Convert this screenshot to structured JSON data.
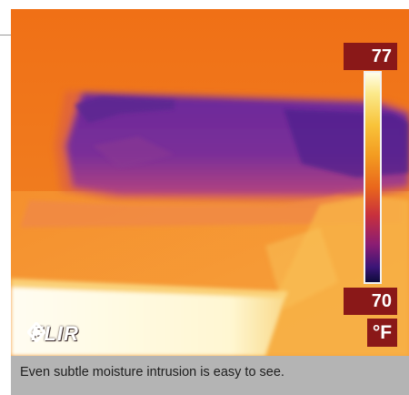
{
  "image": {
    "description": "",
    "scale": {
      "max": "77",
      "min": "70",
      "unit": "°F"
    },
    "brand": "FLIR",
    "caption": "Even subtle moisture intrusion is easy to see."
  }
}
